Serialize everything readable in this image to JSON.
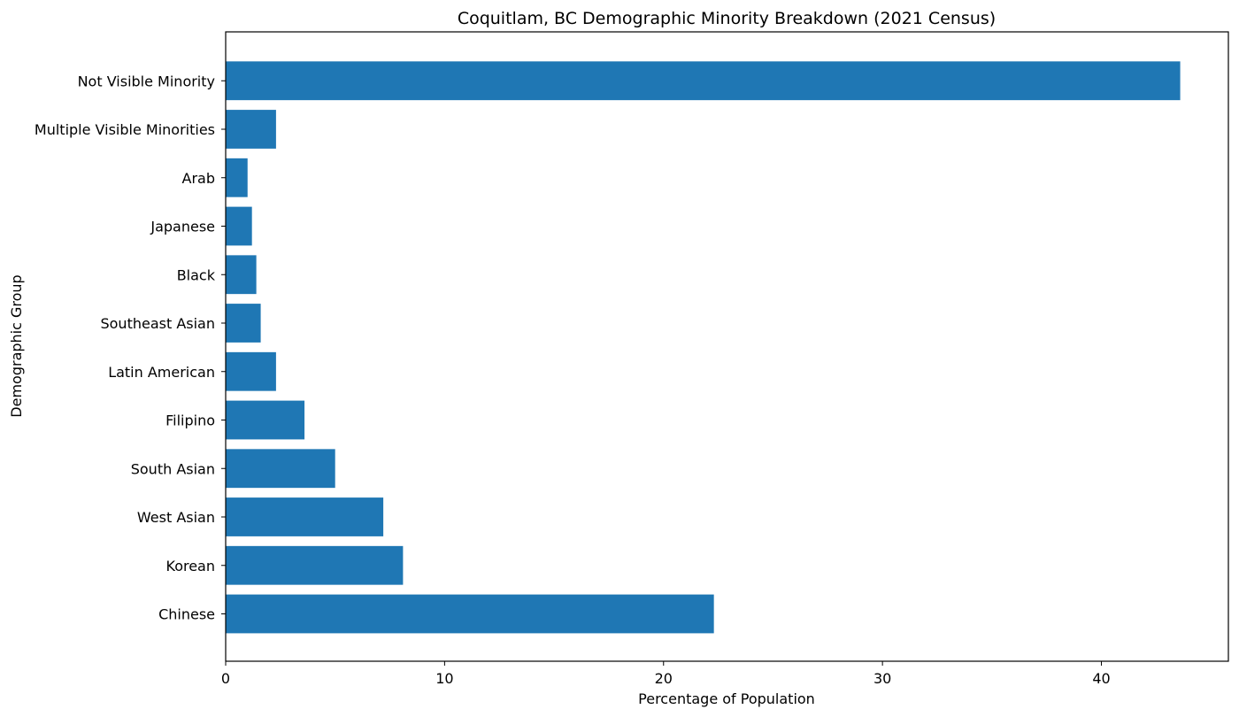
{
  "chart_data": {
    "type": "bar",
    "orientation": "horizontal",
    "title": "Coquitlam, BC Demographic Minority Breakdown (2021 Census)",
    "xlabel": "Percentage of Population",
    "ylabel": "Demographic Group",
    "categories": [
      "Chinese",
      "Korean",
      "West Asian",
      "South Asian",
      "Filipino",
      "Latin American",
      "Southeast Asian",
      "Black",
      "Japanese",
      "Arab",
      "Multiple Visible Minorities",
      "Not Visible Minority"
    ],
    "values": [
      22.3,
      8.1,
      7.2,
      5.0,
      3.6,
      2.3,
      1.6,
      1.4,
      1.2,
      1.0,
      2.3,
      43.6
    ],
    "xlim": [
      0,
      45.8
    ],
    "xticks": [
      0,
      10,
      20,
      30,
      40
    ],
    "grid": false,
    "bar_color": "#1f77b4"
  }
}
